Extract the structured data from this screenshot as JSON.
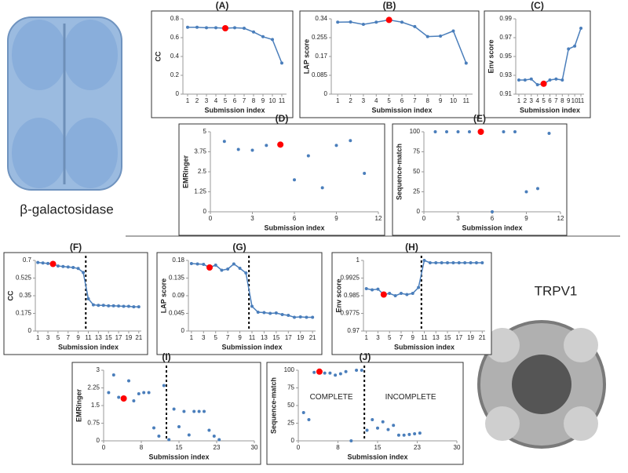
{
  "images": [
    {
      "label": "β-galactosidase"
    },
    {
      "label": "TRPV1"
    }
  ],
  "chart_data": [
    {
      "type": "line",
      "title": "(A)",
      "x_label": "Submission index",
      "y_label": "CC",
      "color": "#4a7ebb",
      "highlight": {
        "index": 4,
        "color": "#ff0000"
      },
      "x": [
        1,
        2,
        3,
        4,
        5,
        6,
        7,
        8,
        9,
        10,
        11
      ],
      "values": [
        0.71,
        0.71,
        0.705,
        0.705,
        0.7,
        0.705,
        0.7,
        0.66,
        0.61,
        0.58,
        0.33
      ],
      "xlim": [
        0.5,
        11.5
      ],
      "xticks": [
        1,
        2,
        3,
        4,
        5,
        6,
        7,
        8,
        9,
        10,
        11
      ],
      "ylim": [
        0,
        0.8
      ],
      "yticks": [
        0,
        0.2,
        0.4,
        0.6,
        0.8
      ]
    },
    {
      "type": "line",
      "title": "(B)",
      "x_label": "Submission index",
      "y_label": "LAP score",
      "color": "#4a7ebb",
      "highlight": {
        "index": 4,
        "color": "#ff0000"
      },
      "x": [
        1,
        2,
        3,
        4,
        5,
        6,
        7,
        8,
        9,
        10,
        11
      ],
      "values": [
        0.325,
        0.326,
        0.315,
        0.325,
        0.335,
        0.325,
        0.305,
        0.26,
        0.262,
        0.285,
        0.14
      ],
      "xlim": [
        0.5,
        11.5
      ],
      "xticks": [
        1,
        2,
        3,
        4,
        5,
        6,
        7,
        8,
        9,
        10,
        11
      ],
      "ylim": [
        0,
        0.34
      ],
      "yticks": [
        0,
        0.085,
        0.17,
        0.255,
        0.34
      ]
    },
    {
      "type": "line",
      "title": "(C)",
      "x_label": "Submission index",
      "y_label": "Env score",
      "color": "#4a7ebb",
      "highlight": {
        "index": 4,
        "color": "#ff0000"
      },
      "x": [
        1,
        2,
        3,
        4,
        5,
        6,
        7,
        8,
        9,
        10,
        11
      ],
      "values": [
        0.925,
        0.925,
        0.926,
        0.92,
        0.921,
        0.925,
        0.926,
        0.925,
        0.958,
        0.961,
        0.98
      ],
      "xlim": [
        0.5,
        11.5
      ],
      "xticks": [
        1,
        2,
        3,
        4,
        5,
        6,
        7,
        8,
        9,
        10,
        11
      ],
      "ylim": [
        0.91,
        0.99
      ],
      "yticks": [
        0.91,
        0.93,
        0.95,
        0.97,
        0.99
      ]
    },
    {
      "type": "scatter",
      "title": "(D)",
      "x_label": "Submission index",
      "y_label": "EMRinger",
      "color": "#4a7ebb",
      "highlight": {
        "index": 4,
        "color": "#ff0000"
      },
      "x": [
        1,
        2,
        3,
        4,
        5,
        6,
        7,
        8,
        9,
        10,
        11
      ],
      "values": [
        4.4,
        3.9,
        3.85,
        4.15,
        4.2,
        2.0,
        3.5,
        1.5,
        4.15,
        4.45,
        2.4
      ],
      "xlim": [
        0,
        12
      ],
      "xticks": [
        0,
        3,
        6,
        9,
        12
      ],
      "ylim": [
        0,
        5
      ],
      "yticks": [
        0,
        1.25,
        2.5,
        3.75,
        5
      ]
    },
    {
      "type": "scatter",
      "title": "(E)",
      "x_label": "Submission index",
      "y_label": "Sequence-match",
      "color": "#4a7ebb",
      "highlight": {
        "index": 4,
        "color": "#ff0000"
      },
      "x": [
        1,
        2,
        3,
        4,
        5,
        6,
        7,
        8,
        9,
        10,
        11
      ],
      "values": [
        100,
        100,
        100,
        100,
        100,
        0,
        100,
        100,
        25,
        29,
        98
      ],
      "xlim": [
        0,
        12
      ],
      "xticks": [
        0,
        3,
        6,
        9,
        12
      ],
      "ylim": [
        0,
        100
      ],
      "yticks": [
        0,
        25,
        50,
        75,
        100
      ]
    },
    {
      "type": "line",
      "title": "(F)",
      "x_label": "Submission index",
      "y_label": "CC",
      "color": "#4a7ebb",
      "highlight": {
        "index": 3,
        "color": "#ff0000"
      },
      "vline": 10.5,
      "x": [
        1,
        2,
        3,
        4,
        5,
        6,
        7,
        8,
        9,
        10,
        11,
        12,
        13,
        14,
        15,
        16,
        17,
        18,
        19,
        20,
        21
      ],
      "values": [
        0.68,
        0.675,
        0.67,
        0.665,
        0.645,
        0.64,
        0.635,
        0.63,
        0.62,
        0.58,
        0.32,
        0.26,
        0.255,
        0.255,
        0.25,
        0.25,
        0.248,
        0.245,
        0.245,
        0.24,
        0.24
      ],
      "xlim": [
        0.5,
        21.5
      ],
      "xticks": [
        1,
        3,
        5,
        7,
        9,
        11,
        13,
        15,
        17,
        19,
        21
      ],
      "ylim": [
        0,
        0.7
      ],
      "yticks": [
        0,
        0.175,
        0.35,
        0.525,
        0.7
      ]
    },
    {
      "type": "line",
      "title": "(G)",
      "x_label": "Submission index",
      "y_label": "LAP score",
      "color": "#4a7ebb",
      "highlight": {
        "index": 3,
        "color": "#ff0000"
      },
      "vline": 10.5,
      "x": [
        1,
        2,
        3,
        4,
        5,
        6,
        7,
        8,
        9,
        10,
        11,
        12,
        13,
        14,
        15,
        16,
        17,
        18,
        19,
        20,
        21
      ],
      "values": [
        0.172,
        0.171,
        0.17,
        0.162,
        0.168,
        0.155,
        0.158,
        0.171,
        0.16,
        0.148,
        0.063,
        0.048,
        0.047,
        0.045,
        0.046,
        0.042,
        0.04,
        0.035,
        0.036,
        0.035,
        0.035
      ],
      "xlim": [
        0.5,
        21.5
      ],
      "xticks": [
        1,
        3,
        5,
        7,
        9,
        11,
        13,
        15,
        17,
        19,
        21
      ],
      "ylim": [
        0,
        0.18
      ],
      "yticks": [
        0,
        0.045,
        0.09,
        0.135,
        0.18
      ]
    },
    {
      "type": "line",
      "title": "(H)",
      "x_label": "Submission index",
      "y_label": "Env score",
      "color": "#4a7ebb",
      "highlight": {
        "index": 3,
        "color": "#ff0000"
      },
      "vline": 10.5,
      "x": [
        1,
        2,
        3,
        4,
        5,
        6,
        7,
        8,
        9,
        10,
        11,
        12,
        13,
        14,
        15,
        16,
        17,
        18,
        19,
        20,
        21
      ],
      "values": [
        0.988,
        0.9875,
        0.9878,
        0.9855,
        0.986,
        0.985,
        0.986,
        0.9855,
        0.986,
        0.9885,
        1,
        0.999,
        0.999,
        0.999,
        0.999,
        0.999,
        0.999,
        0.999,
        0.999,
        0.999,
        0.999
      ],
      "xlim": [
        0.5,
        21.5
      ],
      "xticks": [
        1,
        3,
        5,
        7,
        9,
        11,
        13,
        15,
        17,
        19,
        21
      ],
      "ylim": [
        0.97,
        1
      ],
      "yticks": [
        0.97,
        0.9775,
        0.985,
        0.9925,
        1
      ]
    },
    {
      "type": "scatter",
      "title": "(I)",
      "x_label": "Submission index",
      "y_label": "EMRinger",
      "color": "#4a7ebb",
      "highlight": {
        "index": 3,
        "color": "#ff0000"
      },
      "vline": 12.5,
      "x": [
        1,
        2,
        3,
        4,
        5,
        6,
        7,
        8,
        9,
        10,
        11,
        12,
        13,
        14,
        15,
        16,
        17,
        18,
        19,
        20,
        21,
        22,
        23
      ],
      "values": [
        2.05,
        2.8,
        1.85,
        1.8,
        2.55,
        1.7,
        2.0,
        2.05,
        2.05,
        0.55,
        0.2,
        2.35,
        0.05,
        1.35,
        0.6,
        1.25,
        0.25,
        1.25,
        1.25,
        1.25,
        0.45,
        0.2,
        0.05
      ],
      "xlim": [
        0,
        30
      ],
      "xticks": [
        0,
        {
          "value": 7.5,
          "label": "8"
        },
        15,
        {
          "value": 22.5,
          "label": "23"
        },
        30
      ],
      "ylim": [
        0,
        3
      ],
      "yticks": [
        0,
        0.75,
        1.5,
        2.25,
        3
      ]
    },
    {
      "type": "scatter",
      "title": "(J)",
      "x_label": "Submission index",
      "y_label": "Sequence-match",
      "color": "#4a7ebb",
      "highlight": {
        "index": 3,
        "color": "#ff0000"
      },
      "vline": 12.5,
      "annotations": [
        "COMPLETE",
        "INCOMPLETE"
      ],
      "x": [
        1,
        2,
        3,
        4,
        5,
        6,
        7,
        8,
        9,
        10,
        11,
        12,
        13,
        14,
        15,
        16,
        17,
        18,
        19,
        20,
        21,
        22,
        23
      ],
      "values": [
        40,
        30,
        97,
        98,
        96,
        96,
        93,
        95,
        98,
        0,
        100,
        100,
        15,
        30,
        18,
        27,
        16,
        22,
        8,
        8,
        9,
        10,
        11
      ],
      "xlim": [
        0,
        30
      ],
      "xticks": [
        0,
        {
          "value": 7.5,
          "label": "8"
        },
        15,
        {
          "value": 22.5,
          "label": "23"
        },
        30
      ],
      "ylim": [
        0,
        100
      ],
      "yticks": [
        0,
        25,
        50,
        75,
        100
      ]
    }
  ]
}
